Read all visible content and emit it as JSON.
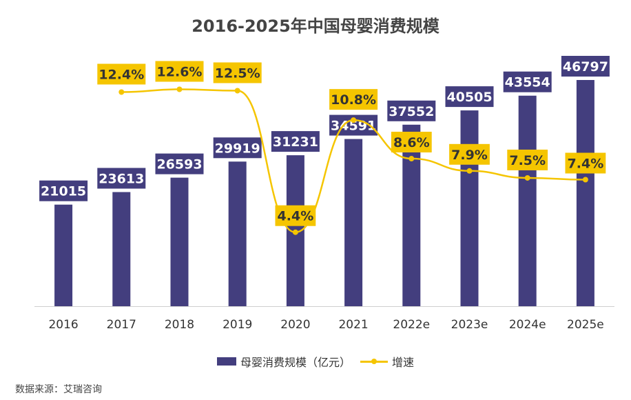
{
  "colors": {
    "bar": "#433e7e",
    "line": "#f5c500",
    "axis": "#cfcfcf",
    "label_text": "#ffffff",
    "line_label_text": "#333333"
  },
  "chart_data": {
    "type": "bar",
    "title": "2016-2025年中国母婴消费规模",
    "categories": [
      "2016",
      "2017",
      "2018",
      "2019",
      "2020",
      "2021",
      "2022e",
      "2023e",
      "2024e",
      "2025e"
    ],
    "series": [
      {
        "name": "母婴消费规模（亿元）",
        "type": "bar",
        "values": [
          21015,
          23613,
          26593,
          29919,
          31231,
          34591,
          37552,
          40505,
          43554,
          46797
        ],
        "labels": [
          "21015",
          "23613",
          "26593",
          "29919",
          "31231",
          "34591",
          "37552",
          "40505",
          "43554",
          "46797"
        ]
      },
      {
        "name": "增速",
        "type": "line",
        "values": [
          null,
          12.4,
          12.6,
          12.5,
          4.4,
          10.8,
          8.6,
          7.9,
          7.5,
          7.4
        ],
        "labels": [
          "",
          "12.4%",
          "12.6%",
          "12.5%",
          "4.4%",
          "10.8%",
          "8.6%",
          "7.9%",
          "7.5%",
          "7.4%"
        ]
      }
    ],
    "legend_position": "bottom-center"
  },
  "legend": {
    "bar_label": "母婴消费规模（亿元）",
    "line_label": "增速"
  },
  "source": "数据来源：艾瑞咨询"
}
